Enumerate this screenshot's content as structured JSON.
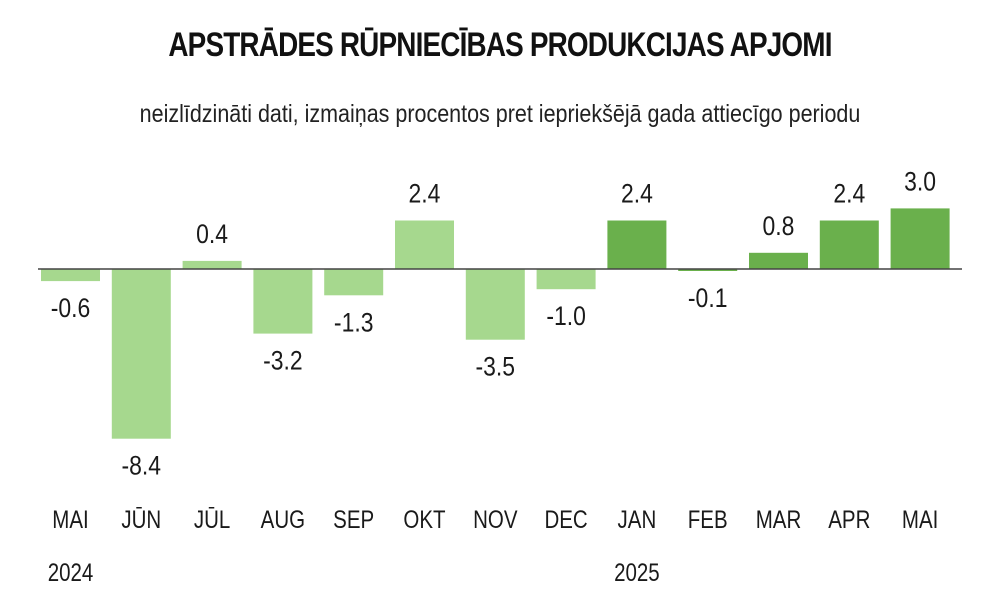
{
  "chart_data": {
    "type": "bar",
    "title": "APSTRĀDES RŪPNIECĪBAS PRODUKCIJAS APJOMI",
    "subtitle": "neizlīdzināti dati, izmaiņas procentos pret iepriekšējā gada attiecīgo periodu",
    "categories": [
      "MAI",
      "JŪN",
      "JŪL",
      "AUG",
      "SEP",
      "OKT",
      "NOV",
      "DEC",
      "JAN",
      "FEB",
      "MAR",
      "APR",
      "MAI"
    ],
    "year_labels": [
      {
        "index": 0,
        "label": "2024"
      },
      {
        "index": 8,
        "label": "2025"
      }
    ],
    "values": [
      -0.6,
      -8.4,
      0.4,
      -3.2,
      -1.3,
      2.4,
      -3.5,
      -1.0,
      2.4,
      -0.1,
      0.8,
      2.4,
      3.0
    ],
    "value_labels": [
      "-0.6",
      "-8.4",
      "0.4",
      "-3.2",
      "-1.3",
      "2.4",
      "-3.5",
      "-1.0",
      "2.4",
      "-0.1",
      "0.8",
      "2.4",
      "3.0"
    ],
    "colors": {
      "2024": "#a6d88e",
      "2025": "#6ab04c",
      "zero_line": "#444444"
    },
    "xlabel": "",
    "ylabel": "",
    "grid": false
  }
}
